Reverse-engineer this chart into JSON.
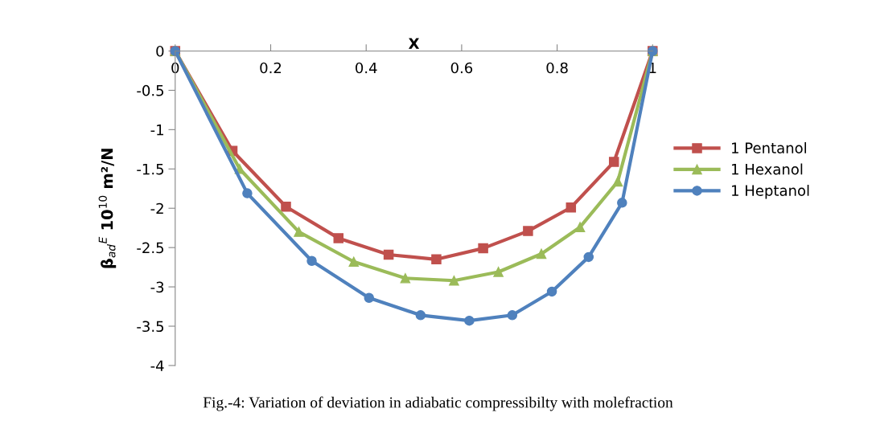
{
  "chart_data": {
    "type": "line",
    "xlabel": "X",
    "ylabel": "β$_{ad}$$^{E}$ 10$^{10}$ m²/N",
    "xlim": [
      0,
      1
    ],
    "xticks": [
      0,
      0.2,
      0.4,
      0.6,
      0.8,
      1
    ],
    "ylim": [
      -4,
      0
    ],
    "yticks": [
      -4,
      -3.5,
      -3,
      -2.5,
      -2,
      -1.5,
      -1,
      -0.5,
      0
    ],
    "grid": false,
    "legend": "right",
    "line_style": "solid",
    "annotations": [
      "Fig.-4: Variation of deviation in adiabatic compressibilty with molefraction"
    ],
    "series": [
      {
        "name": "1 Pentanol",
        "color": "#c0504d",
        "marker": "square",
        "x": [
          0,
          0.12,
          0.232,
          0.342,
          0.447,
          0.547,
          0.645,
          0.739,
          0.829,
          0.919,
          1
        ],
        "values": [
          0,
          -1.27,
          -1.98,
          -2.38,
          -2.59,
          -2.65,
          -2.51,
          -2.29,
          -1.99,
          -1.41,
          0
        ]
      },
      {
        "name": "1 Hexanol",
        "color": "#9bbb59",
        "marker": "triangle",
        "x": [
          0,
          0.135,
          0.259,
          0.374,
          0.482,
          0.584,
          0.677,
          0.767,
          0.848,
          0.927,
          1
        ],
        "values": [
          0,
          -1.5,
          -2.3,
          -2.68,
          -2.89,
          -2.92,
          -2.81,
          -2.58,
          -2.24,
          -1.66,
          0
        ]
      },
      {
        "name": "1 Heptanol",
        "color": "#4f81bd",
        "marker": "circle",
        "x": [
          0,
          0.151,
          0.286,
          0.406,
          0.514,
          0.616,
          0.706,
          0.789,
          0.866,
          0.936,
          1
        ],
        "values": [
          0,
          -1.81,
          -2.67,
          -3.14,
          -3.36,
          -3.43,
          -3.36,
          -3.06,
          -2.62,
          -1.93,
          0
        ]
      }
    ]
  }
}
